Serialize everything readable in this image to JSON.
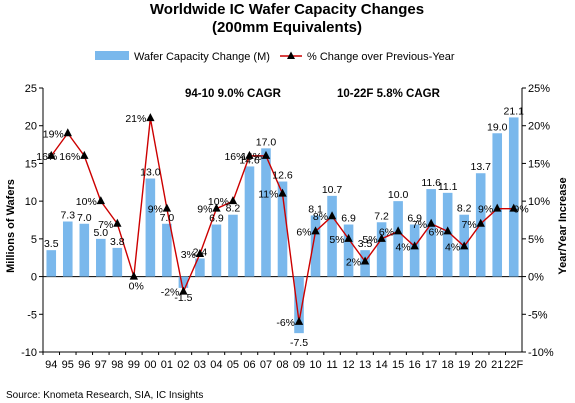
{
  "chart_data": {
    "type": "bar+line",
    "title": "Worldwide IC Wafer Capacity Changes",
    "subtitle": "(200mm Equivalents)",
    "ylabel_left": "Millions of Wafers",
    "ylabel_right": "Year/Year Increase",
    "ylim_left": [
      -10,
      25
    ],
    "ylim_right": [
      -10,
      25
    ],
    "yticks_left": [
      "-10",
      "-5",
      "0",
      "5",
      "10",
      "15",
      "20",
      "25"
    ],
    "yticks_right": [
      "-10%",
      "-5%",
      "0%",
      "5%",
      "10%",
      "15%",
      "20%",
      "25%"
    ],
    "categories": [
      "94",
      "95",
      "96",
      "97",
      "98",
      "99",
      "00",
      "01",
      "02",
      "03",
      "04",
      "05",
      "06",
      "07",
      "08",
      "09",
      "10",
      "11",
      "12",
      "13",
      "14",
      "15",
      "16",
      "17",
      "18",
      "19",
      "20",
      "21",
      "22F"
    ],
    "series": [
      {
        "name": "Wafer Capacity Change (M)",
        "type": "bar",
        "color": "#7ab8ec",
        "values": [
          3.5,
          7.3,
          7.0,
          5.0,
          3.8,
          0.0,
          13.0,
          7.0,
          -1.5,
          2.4,
          6.9,
          8.2,
          14.6,
          17.0,
          12.6,
          -7.5,
          8.1,
          10.7,
          6.9,
          3.5,
          7.2,
          10.0,
          6.9,
          11.6,
          11.1,
          8.2,
          13.7,
          19.0,
          21.1
        ],
        "labels": [
          "3.5",
          "7.3",
          "7.0",
          "5.0",
          "3.8",
          "0%",
          "13.0",
          "7.0",
          "-1.5",
          "2.4",
          "6.9",
          "8.2",
          "14.6",
          "17.0",
          "12.6",
          "-7.5",
          "8.1",
          "10.7",
          "6.9",
          "3.5",
          "7.2",
          "10.0",
          "6.9",
          "11.6",
          "11.1",
          "8.2",
          "13.7",
          "19.0",
          "21.1"
        ]
      },
      {
        "name": "% Change over Previous-Year",
        "type": "line",
        "color": "#cc0000",
        "marker_color": "#000000",
        "values": [
          16,
          19,
          16,
          10,
          7,
          0,
          21,
          9,
          -2,
          3,
          9,
          10,
          16,
          16,
          11,
          -6,
          6,
          8,
          5,
          2,
          5,
          6,
          4,
          7,
          6,
          4,
          7,
          9,
          9
        ],
        "labels": [
          "16%",
          "19%",
          "16%",
          "10%",
          "7%",
          "0%",
          "21%",
          "9%",
          "-2%",
          "3%",
          "9%",
          "10%",
          "16%",
          "16%",
          "11%",
          "-6%",
          "6%",
          "8%",
          "5%",
          "2%",
          "5%",
          "6%",
          "4%",
          "7%",
          "6%",
          "4%",
          "7%",
          "9%",
          "9%"
        ]
      }
    ],
    "annotations": [
      "94-10 9.0% CAGR",
      "10-22F 5.8% CAGR"
    ],
    "legend_position": "top",
    "grid": false
  },
  "source": "Source: Knometa Research, SIA, IC Insights"
}
